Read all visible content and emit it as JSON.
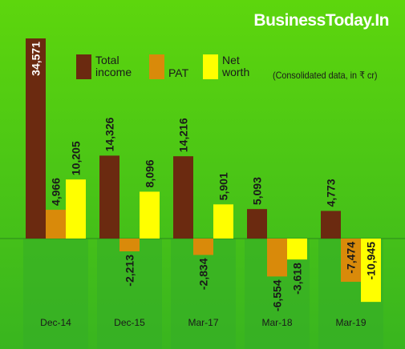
{
  "brand": "BusinessToday.In",
  "note": "(Consolidated data, in ₹ cr)",
  "colors": {
    "background_top": "#5dd60d",
    "background_bottom": "#39b51f",
    "total_income": "#6b2a10",
    "pat": "#d98a0a",
    "net_worth": "#ffff00"
  },
  "chart_data": {
    "type": "bar",
    "categories": [
      "Dec-14",
      "Dec-15",
      "Mar-17",
      "Mar-18",
      "Mar-19"
    ],
    "series": [
      {
        "name": "Total income",
        "values": [
          34571,
          14326,
          14216,
          5093,
          4773
        ],
        "labels": [
          "34,571",
          "14,326",
          "14,216",
          "5,093",
          "4,773"
        ]
      },
      {
        "name": "PAT",
        "values": [
          4966,
          -2213,
          -2834,
          -6554,
          -7474
        ],
        "labels": [
          "4,966",
          "-2,213",
          "-2,834",
          "-6,554",
          "-7,474"
        ]
      },
      {
        "name": "Net worth",
        "values": [
          10205,
          8096,
          5901,
          -3618,
          -10945
        ],
        "labels": [
          "10,205",
          "8,096",
          "5,901",
          "-3,618",
          "-10,945"
        ]
      }
    ],
    "ylim": [
      -10945,
      34571
    ],
    "grid": false,
    "legend": "top"
  }
}
